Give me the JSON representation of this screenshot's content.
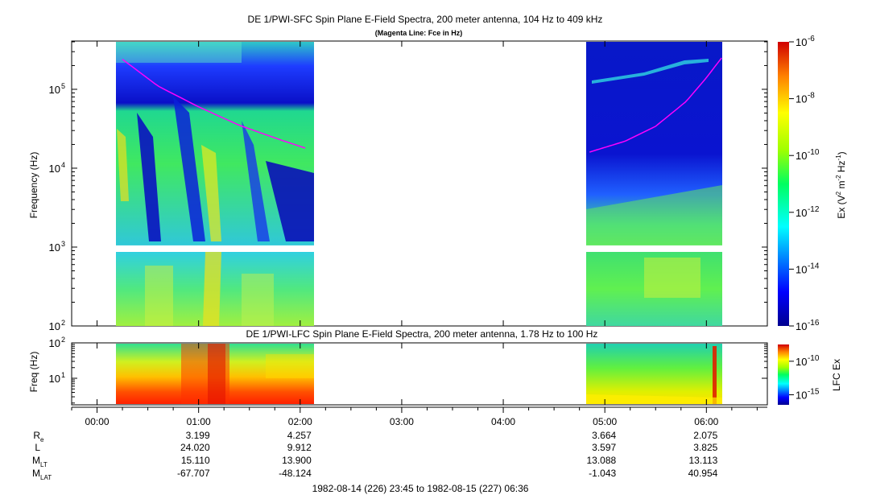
{
  "chart_data": [
    {
      "type": "heatmap",
      "title": "DE 1/PWI-SFC  Spin Plane E-Field Spectra, 200 meter antenna, 104 Hz to 409 kHz",
      "subtitle": "(Magenta Line: Fce in Hz)",
      "ylabel": "Frequency (Hz)",
      "yscale": "log",
      "ylim": [
        100,
        409000
      ],
      "yticks": [
        {
          "value": 100,
          "label": "10",
          "exp": "2"
        },
        {
          "value": 1000,
          "label": "10",
          "exp": "3"
        },
        {
          "value": 10000,
          "label": "10",
          "exp": "4"
        },
        {
          "value": 100000,
          "label": "10",
          "exp": "5"
        }
      ],
      "xlim_hours": [
        -0.25,
        6.6
      ],
      "data_segments_hours": [
        [
          0.2,
          2.1
        ],
        [
          4.85,
          6.15
        ]
      ],
      "band_gap_hz": [
        900,
        1050
      ],
      "fce_line": {
        "label": "Fce",
        "color": "#ff00ff",
        "segments": [
          {
            "t_hours": [
              0.25,
              0.6,
              1.0,
              1.4,
              1.8,
              2.05
            ],
            "fce_hz": [
              240000,
              110000,
              60000,
              35000,
              23000,
              18000
            ]
          },
          {
            "t_hours": [
              4.85,
              5.2,
              5.5,
              5.8,
              6.0,
              6.15
            ],
            "fce_hz": [
              16000,
              22000,
              34000,
              70000,
              140000,
              250000
            ]
          }
        ]
      },
      "colorbar": {
        "label": "Ex (V",
        "label_sup1": "2",
        "label_mid": " m",
        "label_sup2": "-2",
        "label_mid2": " Hz",
        "label_sup3": "-1",
        "label_end": ")",
        "ticks": [
          {
            "value": 1e-06,
            "label": "10",
            "exp": "-6"
          },
          {
            "value": 1e-08,
            "label": "10",
            "exp": "-8"
          },
          {
            "value": 1e-10,
            "label": "10",
            "exp": "-10"
          },
          {
            "value": 1e-12,
            "label": "10",
            "exp": "-12"
          },
          {
            "value": 1e-14,
            "label": "10",
            "exp": "-14"
          },
          {
            "value": 1e-16,
            "label": "10",
            "exp": "-16"
          }
        ]
      }
    },
    {
      "type": "heatmap",
      "title": "DE 1/PWI-LFC  Spin Plane E-Field Spectra, 200 meter antenna, 1.78 Hz to 100 Hz",
      "ylabel": "Freq (Hz)",
      "yscale": "log",
      "ylim": [
        1.78,
        100
      ],
      "yticks": [
        {
          "value": 10,
          "label": "10",
          "exp": "1"
        },
        {
          "value": 100,
          "label": "10",
          "exp": "2"
        }
      ],
      "data_segments_hours": [
        [
          0.2,
          2.1
        ],
        [
          4.85,
          6.15
        ]
      ],
      "colorbar": {
        "label": "LFC Ex",
        "ticks": [
          {
            "value": 1e-10,
            "label": "10",
            "exp": "-10"
          },
          {
            "value": 1e-15,
            "label": "10",
            "exp": "-15"
          }
        ]
      }
    }
  ],
  "time_axis": {
    "ticks": [
      {
        "hours": 0,
        "label": "00:00"
      },
      {
        "hours": 1,
        "label": "01:00"
      },
      {
        "hours": 2,
        "label": "02:00"
      },
      {
        "hours": 3,
        "label": "03:00"
      },
      {
        "hours": 4,
        "label": "04:00"
      },
      {
        "hours": 5,
        "label": "05:00"
      },
      {
        "hours": 6,
        "label": "06:00"
      }
    ]
  },
  "ephemeris": {
    "rows": [
      {
        "label": "R",
        "sub": "e",
        "values": [
          "3.199",
          "4.257",
          "",
          "",
          "3.664",
          "2.075"
        ]
      },
      {
        "label": "L",
        "sub": "",
        "values": [
          "24.020",
          "9.912",
          "",
          "",
          "3.597",
          "3.825"
        ]
      },
      {
        "label": "M",
        "sub": "LT",
        "values": [
          "15.110",
          "13.900",
          "",
          "",
          "13.088",
          "13.113"
        ]
      },
      {
        "label": "M",
        "sub": "LAT",
        "values": [
          "-67.707",
          "-48.124",
          "",
          "",
          "-1.043",
          "40.954"
        ]
      }
    ],
    "column_hours": [
      1,
      2,
      3,
      4,
      5,
      6
    ]
  },
  "footer": {
    "time_range": "1982-08-14 (226) 23:45 to 1982-08-15 (227) 06:36"
  }
}
